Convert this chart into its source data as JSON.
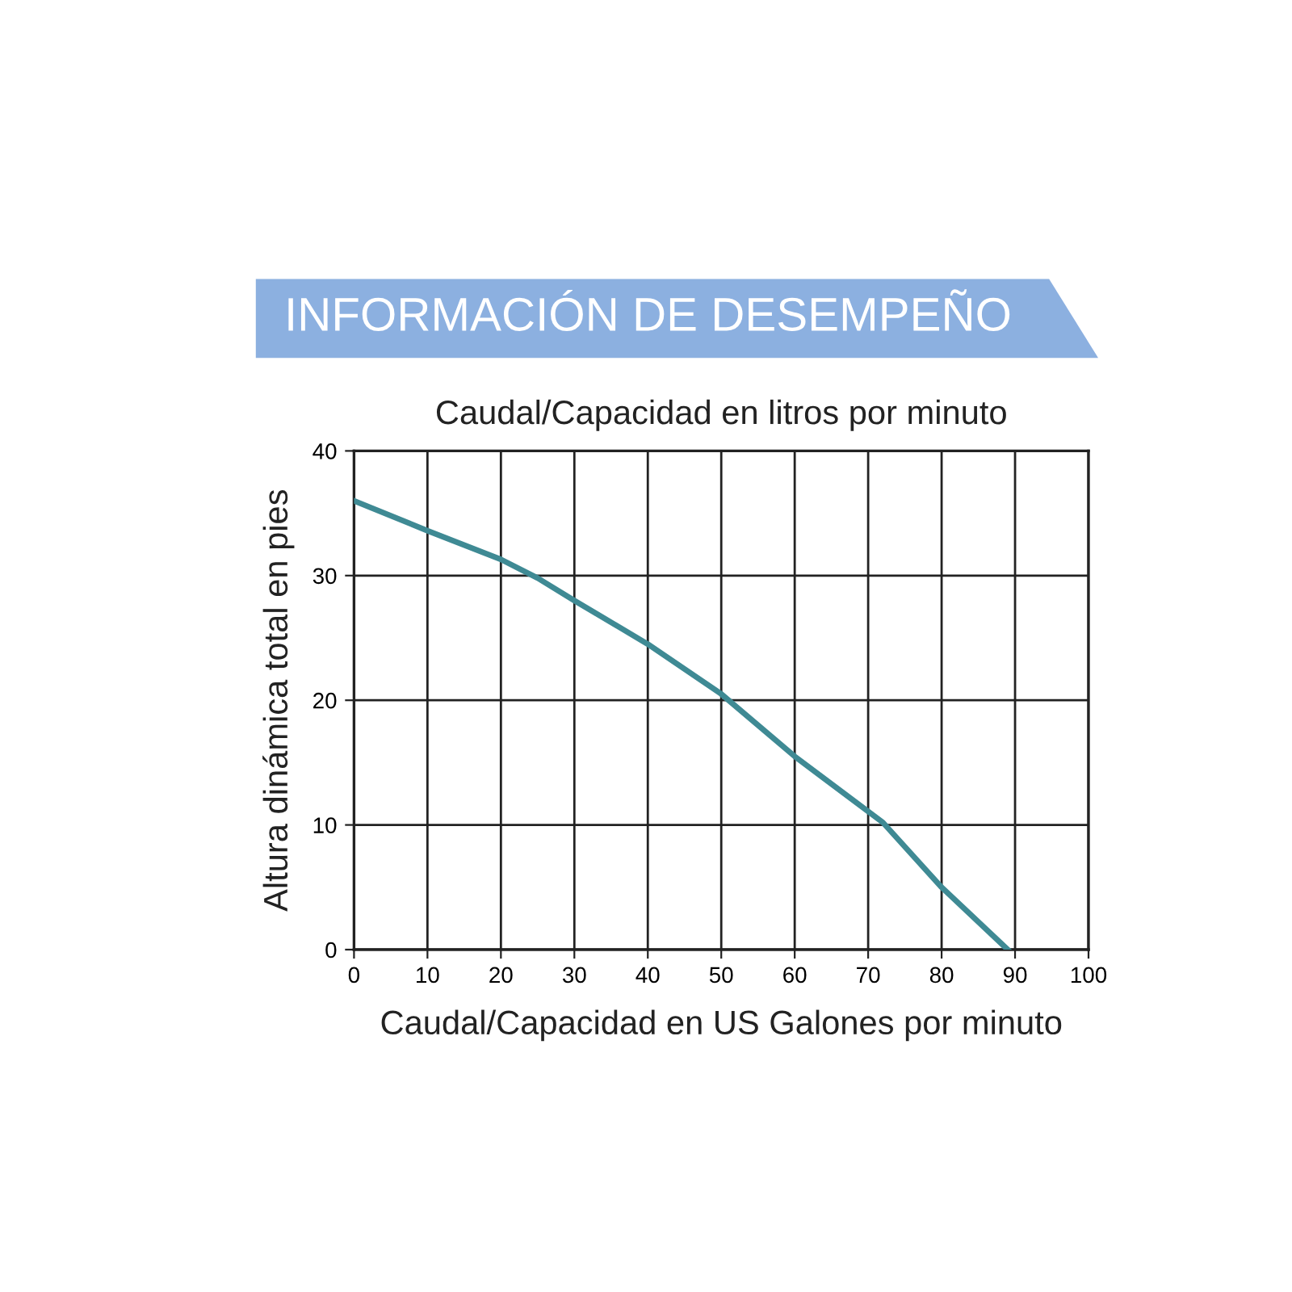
{
  "chart_data": {
    "type": "line",
    "title": "INFORMACIÓN DE DESEMPEÑO",
    "subtitle": "Caudal/Capacidad en litros por minuto",
    "xlabel": "Caudal/Capacidad en US Galones por minuto",
    "ylabel": "Altura dinámica total en pies",
    "x": [
      0,
      10,
      20,
      25,
      30,
      40,
      50,
      60,
      72,
      80,
      89
    ],
    "series": [
      {
        "color": "#3f8a94",
        "values": [
          36,
          33.6,
          31.3,
          29.8,
          28,
          24.5,
          20.5,
          15.5,
          10.2,
          5,
          0
        ]
      }
    ],
    "xlim": [
      0,
      100
    ],
    "xticks": [
      0,
      10,
      20,
      30,
      40,
      50,
      60,
      70,
      80,
      90,
      100
    ],
    "ylim": [
      0,
      40
    ],
    "yticks": [
      0,
      10,
      20,
      30,
      40
    ],
    "grid": true,
    "marker": "none",
    "line_style": "solid"
  }
}
